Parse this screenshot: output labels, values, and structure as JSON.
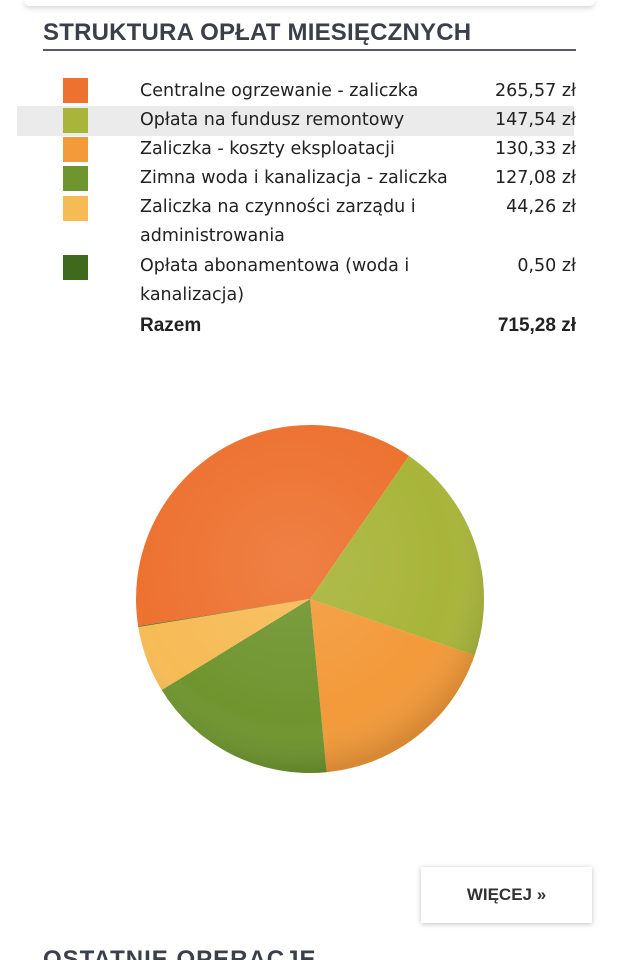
{
  "section": {
    "title": "STRUKTURA OPŁAT MIESIĘCZNYCH"
  },
  "legend": {
    "items": [
      {
        "label_lines": [
          "Centralne ogrzewanie - zaliczka"
        ],
        "amount": "265,57 zł",
        "color": "#ed7230",
        "highlighted": false
      },
      {
        "label_lines": [
          "Opłata na fundusz remontowy"
        ],
        "amount": "147,54 zł",
        "color": "#a8b53a",
        "highlighted": true
      },
      {
        "label_lines": [
          "Zaliczka - koszty eksploatacji"
        ],
        "amount": "130,33 zł",
        "color": "#f39a3a",
        "highlighted": false
      },
      {
        "label_lines": [
          "Zimna woda i kanalizacja - zaliczka"
        ],
        "amount": "127,08 zł",
        "color": "#6f952f",
        "highlighted": false
      },
      {
        "label_lines": [
          "Zaliczka na czynności zarządu i",
          "administrowania"
        ],
        "amount": "44,26 zł",
        "color": "#f7bb56",
        "highlighted": false
      },
      {
        "label_lines": [
          "Opłata abonamentowa (woda i",
          "kanalizacja)"
        ],
        "amount": "0,50 zł",
        "color": "#3f6a1e",
        "highlighted": false
      }
    ],
    "total_label": "Razem",
    "total_amount": "715,28 zł"
  },
  "chart_data": {
    "type": "pie",
    "categories": [
      "Centralne ogrzewanie - zaliczka",
      "Opłata na fundusz remontowy",
      "Zaliczka - koszty eksploatacji",
      "Zimna woda i kanalizacja - zaliczka",
      "Zaliczka na czynności zarządu i administrowania",
      "Opłata abonamentowa (woda i kanalizacja)"
    ],
    "values": [
      265.57,
      147.54,
      130.33,
      127.08,
      44.26,
      0.5
    ],
    "colors": [
      "#ed7230",
      "#a8b53a",
      "#f39a3a",
      "#6f952f",
      "#f7bb56",
      "#3f6a1e"
    ],
    "title": "STRUKTURA OPŁAT MIESIĘCZNYCH",
    "unit": "zł",
    "legend_position": "top"
  },
  "buttons": {
    "more_label": "WIĘCEJ »"
  },
  "next_section": {
    "title_partial": "OSTATNIE OPERACJE"
  }
}
